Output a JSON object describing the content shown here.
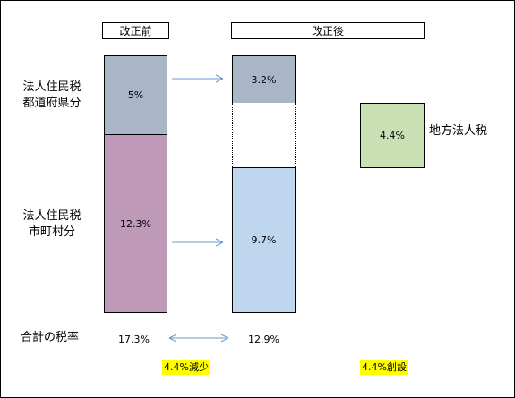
{
  "headers": {
    "before": "改正前",
    "after": "改正後"
  },
  "row_labels": {
    "prefecture_line1": "法人住民税",
    "prefecture_line2": "都道府県分",
    "municipal_line1": "法人住民税",
    "municipal_line2": "市町村分",
    "total": "合計の税率"
  },
  "before": {
    "prefecture": "5%",
    "municipal": "12.3%",
    "total": "17.3%"
  },
  "after": {
    "prefecture": "3.2%",
    "municipal": "9.7%",
    "total": "12.9%"
  },
  "local_corporate_tax": {
    "value": "4.4%",
    "label": "地方法人税"
  },
  "notes": {
    "decrease": "4.4%減少",
    "created": "4.4%創設"
  },
  "colors": {
    "prefecture_bar": "#a9b6c8",
    "municipal_bar_before": "#bf9ab8",
    "municipal_bar_after": "#bed6ee",
    "local_tax_box": "#c9e0b4",
    "arrow": "#6b9bd1",
    "highlight": "#ffff00"
  }
}
